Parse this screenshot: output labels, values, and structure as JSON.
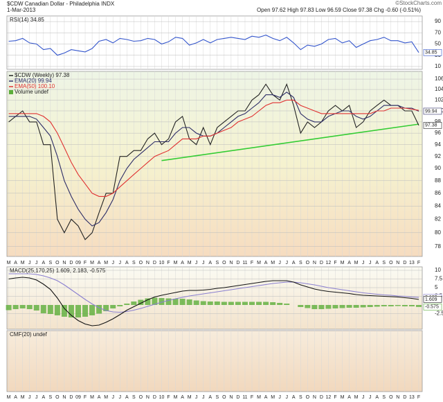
{
  "header": {
    "title": "$CDW Canadian Dollar - Philadelphia INDX",
    "date": "1-Mar-2013",
    "quote": "Open 97.62  High 97.83  Low 96.59  Close 97.38  Chg -0.60 (-0.51%)",
    "credit": "©StockCharts.com"
  },
  "chart_data": [
    {
      "type": "line",
      "title": "RSI(14) 34.85",
      "ylim": [
        5,
        100
      ],
      "yticks": [
        10,
        30,
        50,
        70,
        90
      ],
      "grid": true,
      "series": [
        {
          "name": "RSI(14)",
          "color": "#3355cc",
          "end_tag": true,
          "values": [
            55,
            56,
            60,
            52,
            50,
            40,
            42,
            30,
            34,
            40,
            38,
            36,
            42,
            55,
            58,
            52,
            60,
            58,
            55,
            56,
            60,
            58,
            50,
            54,
            62,
            60,
            48,
            52,
            58,
            52,
            58,
            60,
            62,
            60,
            58,
            64,
            62,
            66,
            60,
            56,
            62,
            52,
            40,
            48,
            46,
            50,
            58,
            60,
            52,
            56,
            44,
            50,
            56,
            58,
            62,
            56,
            56,
            52,
            54,
            34.85
          ]
        }
      ]
    },
    {
      "type": "line",
      "log_scale": true,
      "ylim": [
        76.6,
        107.5
      ],
      "yticks": [
        78,
        80,
        82,
        84,
        86,
        88,
        90,
        92,
        94,
        96,
        98,
        100,
        102,
        104,
        106
      ],
      "grid": true,
      "categories": [
        "M",
        "A",
        "M",
        "J",
        "J",
        "A",
        "S",
        "O",
        "N",
        "D",
        "09",
        "F",
        "M",
        "A",
        "M",
        "J",
        "J",
        "A",
        "S",
        "O",
        "N",
        "D",
        "10",
        "F",
        "M",
        "A",
        "M",
        "J",
        "J",
        "A",
        "S",
        "O",
        "N",
        "D",
        "11",
        "F",
        "M",
        "A",
        "M",
        "J",
        "J",
        "A",
        "S",
        "O",
        "N",
        "D",
        "12",
        "F",
        "M",
        "A",
        "M",
        "J",
        "J",
        "A",
        "S",
        "O",
        "N",
        "D",
        "13",
        "F"
      ],
      "volume_label": "Volume undef",
      "series": [
        {
          "name": "$CDW (Weekly) 97.38",
          "color": "#222222",
          "end_tag": true,
          "values": [
            98,
            99,
            100,
            98,
            98,
            94,
            94,
            82,
            80,
            82,
            81,
            79,
            80,
            83,
            86,
            86,
            92,
            92,
            93,
            93,
            95,
            96,
            94,
            95,
            98,
            99,
            95,
            94,
            97,
            94,
            97,
            98,
            99,
            100,
            100,
            102,
            103,
            105,
            103,
            102,
            105,
            101,
            96,
            98,
            97,
            98,
            100,
            101,
            100,
            101,
            97,
            98,
            100,
            101,
            102,
            101,
            101,
            100,
            100,
            97.38
          ]
        },
        {
          "name": "EMA(20) 99.94",
          "color": "#2b2b66",
          "end_tag": true,
          "values": [
            99,
            99,
            99,
            99,
            98.5,
            97,
            95.5,
            92,
            88,
            85.5,
            83.5,
            82,
            81,
            81.5,
            83,
            85,
            88,
            90,
            91.5,
            92.5,
            93.5,
            94.5,
            94.5,
            94.5,
            96,
            97,
            97,
            96,
            95.5,
            95.5,
            96,
            97,
            98,
            99,
            99.5,
            100.5,
            101.5,
            103,
            103,
            102.5,
            103.5,
            102.5,
            99.5,
            98.5,
            98,
            98,
            99,
            99.5,
            100,
            100,
            99,
            98.5,
            99,
            100,
            101,
            101,
            101,
            100.5,
            100.5,
            99.94
          ]
        },
        {
          "name": "EMA(50) 100.10",
          "color": "#e03030",
          "values": [
            99.5,
            99.5,
            99.5,
            99.5,
            99.5,
            99,
            98,
            96,
            93.5,
            91,
            89,
            87.5,
            86,
            85.5,
            85.5,
            86,
            87,
            88,
            89,
            90,
            91,
            92,
            92.5,
            93,
            94,
            95,
            95,
            95,
            95.5,
            95.5,
            96,
            96.5,
            97,
            98,
            98.5,
            99,
            100,
            101,
            101.5,
            101.5,
            102,
            102,
            101,
            100.5,
            100,
            99.5,
            99.5,
            99.5,
            99.5,
            99.5,
            99.5,
            99.5,
            99.5,
            100,
            100,
            100.5,
            100.5,
            100.5,
            100.3,
            100.1
          ]
        }
      ],
      "trendline": {
        "color": "#33cc33",
        "x": [
          22,
          59
        ],
        "values": [
          91.3,
          97.6
        ]
      }
    },
    {
      "type": "line",
      "title": "MACD(25,170,25) 1.609, 2.183, -0.575",
      "ylim": [
        -7,
        11
      ],
      "yticks": [
        -2.5,
        2.5,
        5,
        7.5,
        10
      ],
      "grid": true,
      "series": [
        {
          "name": "Histogram",
          "type": "bar",
          "color": "#5cae3a",
          "end_tag": true,
          "values": [
            -1.5,
            -1.2,
            -1,
            -1.2,
            -1.6,
            -2.4,
            -2.6,
            -3,
            -3.4,
            -3.6,
            -3.6,
            -3.4,
            -3,
            -2.5,
            -1.8,
            -1,
            -0.4,
            0.4,
            1,
            1.5,
            1.9,
            2.1,
            2,
            1.9,
            1.8,
            1.8,
            1.6,
            1.3,
            1.1,
            1,
            1,
            0.9,
            0.9,
            0.9,
            0.9,
            0.9,
            0.9,
            0.9,
            0.8,
            0.6,
            0.4,
            0,
            -0.6,
            -0.9,
            -1.2,
            -1.2,
            -1.1,
            -1,
            -0.9,
            -0.8,
            -0.8,
            -0.7,
            -0.6,
            -0.5,
            -0.4,
            -0.4,
            -0.3,
            -0.4,
            -0.4,
            -0.575
          ]
        },
        {
          "name": "Signal",
          "color": "#8a7fd0",
          "end_tag": true,
          "values": [
            9,
            9,
            9,
            9,
            8.8,
            8.4,
            7.8,
            7,
            5.8,
            4.4,
            3,
            1.6,
            0.3,
            -0.8,
            -1.6,
            -2,
            -2.1,
            -1.9,
            -1.5,
            -1,
            -0.4,
            0.2,
            0.8,
            1.3,
            1.8,
            2.2,
            2.6,
            2.9,
            3.2,
            3.5,
            3.8,
            4.1,
            4.4,
            4.7,
            5,
            5.3,
            5.6,
            5.9,
            6.2,
            6.4,
            6.6,
            6.6,
            6.4,
            6.1,
            5.8,
            5.4,
            5,
            4.7,
            4.4,
            4.1,
            3.8,
            3.5,
            3.3,
            3.1,
            2.9,
            2.8,
            2.6,
            2.5,
            2.3,
            2.183
          ]
        },
        {
          "name": "MACD",
          "color": "#111111",
          "end_tag": true,
          "values": [
            7.5,
            7.8,
            8,
            7.8,
            7.2,
            6,
            4.5,
            2,
            -1,
            -3,
            -4.5,
            -5.5,
            -6,
            -5.8,
            -5,
            -4,
            -2.8,
            -1.5,
            -0.5,
            0.5,
            1.5,
            2.3,
            2.8,
            3.2,
            3.6,
            4,
            4.2,
            4.2,
            4.3,
            4.5,
            4.8,
            5,
            5.3,
            5.6,
            5.9,
            6.2,
            6.5,
            6.8,
            7,
            7,
            7,
            6.6,
            5.8,
            5.2,
            4.6,
            4.2,
            3.9,
            3.7,
            3.5,
            3.3,
            3,
            2.8,
            2.7,
            2.6,
            2.5,
            2.4,
            2.3,
            2.1,
            1.9,
            1.609
          ]
        }
      ]
    },
    {
      "type": "line",
      "title": "CMF(20) undef"
    }
  ]
}
